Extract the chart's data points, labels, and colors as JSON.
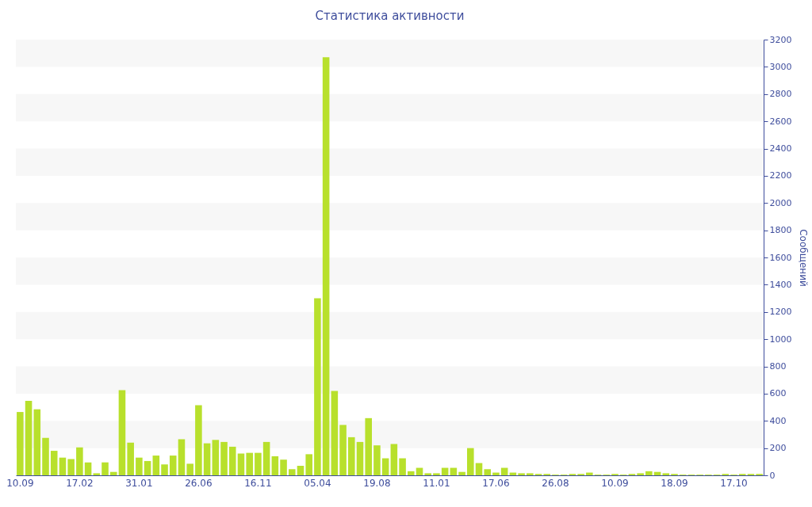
{
  "chart_data": {
    "type": "bar",
    "title": "Статистика активности",
    "ylabel": "Сообщений",
    "categories": [
      "10.09",
      null,
      null,
      null,
      null,
      null,
      null,
      "17.02",
      null,
      null,
      null,
      null,
      null,
      null,
      "31.01",
      null,
      null,
      null,
      null,
      null,
      null,
      "26.06",
      null,
      null,
      null,
      null,
      null,
      null,
      "16.11",
      null,
      null,
      null,
      null,
      null,
      null,
      "05.04",
      null,
      null,
      null,
      null,
      null,
      null,
      "19.08",
      null,
      null,
      null,
      null,
      null,
      null,
      "11.01",
      null,
      null,
      null,
      null,
      null,
      null,
      "17.06",
      null,
      null,
      null,
      null,
      null,
      null,
      "26.08",
      null,
      null,
      null,
      null,
      null,
      null,
      "10.09",
      null,
      null,
      null,
      null,
      null,
      null,
      "18.09",
      null,
      null,
      null,
      null,
      null,
      null,
      "17.10",
      null,
      null,
      null
    ],
    "series": [
      {
        "color": "#b8e02c",
        "values": [
          465,
          547,
          485,
          275,
          180,
          130,
          120,
          205,
          95,
          15,
          95,
          25,
          625,
          240,
          130,
          105,
          145,
          80,
          145,
          265,
          85,
          515,
          235,
          260,
          245,
          210,
          160,
          165,
          165,
          245,
          140,
          115,
          45,
          70,
          155,
          1300,
          3070,
          620,
          370,
          280,
          245,
          420,
          220,
          125,
          230,
          125,
          30,
          55,
          15,
          15,
          55,
          55,
          25,
          200,
          90,
          45,
          20,
          55,
          20,
          15,
          15,
          10,
          10,
          5,
          5,
          10,
          10,
          20,
          5,
          5,
          10,
          5,
          10,
          15,
          30,
          25,
          15,
          10,
          5,
          5,
          5,
          5,
          5,
          10,
          5,
          10,
          10,
          10
        ]
      }
    ],
    "ylim": [
      0,
      3200
    ],
    "yticks": [
      0,
      200,
      400,
      600,
      800,
      1000,
      1200,
      1400,
      1600,
      1800,
      2000,
      2200,
      2400,
      2600,
      2800,
      3000,
      3200
    ],
    "bands": [
      {
        "axis": "y",
        "from": 200,
        "to": 400,
        "color": "#f7f7f7"
      },
      {
        "axis": "y",
        "from": 600,
        "to": 800,
        "color": "#f7f7f7"
      },
      {
        "axis": "y",
        "from": 1000,
        "to": 1200,
        "color": "#f7f7f7"
      },
      {
        "axis": "y",
        "from": 1400,
        "to": 1600,
        "color": "#f7f7f7"
      },
      {
        "axis": "y",
        "from": 1800,
        "to": 2000,
        "color": "#f7f7f7"
      },
      {
        "axis": "y",
        "from": 2200,
        "to": 2400,
        "color": "#f7f7f7"
      },
      {
        "axis": "y",
        "from": 2600,
        "to": 2800,
        "color": "#f7f7f7"
      },
      {
        "axis": "y",
        "from": 3000,
        "to": 3200,
        "color": "#f7f7f7"
      }
    ]
  }
}
